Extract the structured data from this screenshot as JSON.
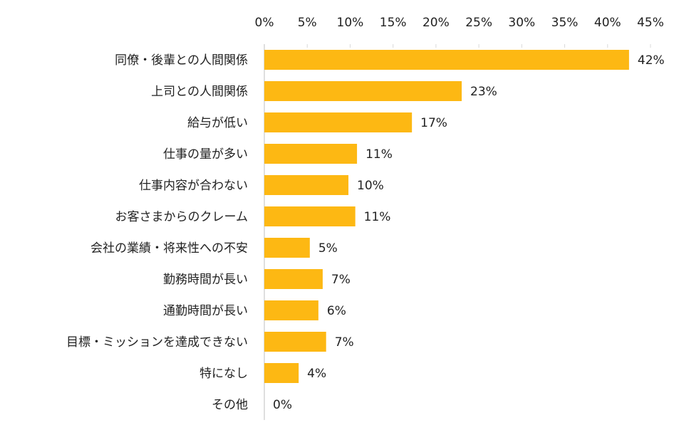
{
  "chart_data": {
    "type": "bar",
    "orientation": "horizontal",
    "categories": [
      "同僚・後輩との人間関係",
      "上司との人間関係",
      "給与が低い",
      "仕事の量が多い",
      "仕事内容が合わない",
      "お客さまからのクレーム",
      "会社の業績・将来性への不安",
      "勤務時間が長い",
      "通勤時間が長い",
      "目標・ミッションを達成できない",
      "特になし",
      "その他"
    ],
    "values": [
      42.5,
      23,
      17.2,
      10.8,
      9.8,
      10.6,
      5.3,
      6.8,
      6.3,
      7.2,
      4.0,
      0
    ],
    "data_labels": [
      "42%",
      "23%",
      "17%",
      "11%",
      "10%",
      "11%",
      "5%",
      "7%",
      "6%",
      "7%",
      "4%",
      "0%"
    ],
    "x_ticks": [
      "0%",
      "5%",
      "10%",
      "15%",
      "20%",
      "25%",
      "30%",
      "35%",
      "40%",
      "45%"
    ],
    "xlim": [
      0,
      45
    ],
    "x_axis_position": "top",
    "grid": false,
    "bar_color": "#FDB813"
  }
}
